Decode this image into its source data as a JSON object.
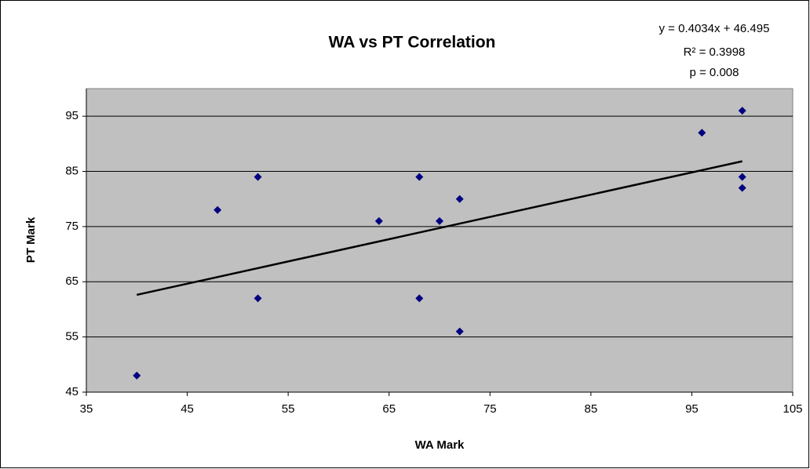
{
  "chart_data": {
    "type": "scatter",
    "title": "WA vs PT Correlation",
    "x_label": "WA Mark",
    "y_label": "PT Mark",
    "annotations": [
      "y = 0.4034x + 46.495",
      "R² = 0.3998",
      "p = 0.008"
    ],
    "series": [
      {
        "name": "PT Mark",
        "color": "#000080",
        "x": [
          40,
          48,
          52,
          52,
          64,
          68,
          68,
          70,
          72,
          72,
          96,
          100,
          100,
          100
        ],
        "values": [
          48,
          78,
          84,
          62,
          76,
          84,
          62,
          76,
          80,
          56,
          92,
          96,
          84,
          82
        ]
      }
    ],
    "trendline": {
      "color": "#000000",
      "x": [
        40,
        100
      ],
      "values": [
        62.631,
        86.835
      ]
    },
    "xlim": [
      35,
      105
    ],
    "xticks": [
      35,
      45,
      55,
      65,
      75,
      85,
      95,
      105
    ],
    "ylim": [
      45,
      100
    ],
    "yticks": [
      45,
      55,
      65,
      75,
      85,
      95
    ],
    "grid": true,
    "plot_background": "#c0c0c0"
  }
}
